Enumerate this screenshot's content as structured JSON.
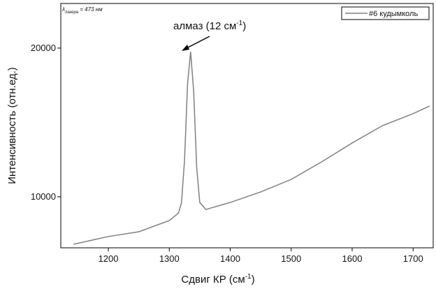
{
  "chart_data": {
    "type": "line",
    "xlabel": {
      "text": "Сдвиг КР (см",
      "sup": "-1",
      "suffix": ")"
    },
    "ylabel": "Интенсивность (отн.ед.)",
    "note": {
      "symbol": "λ",
      "sub": "лазера",
      "text": "= 473 нм"
    },
    "annotation": {
      "text": "алмаз (12 см",
      "sup": "-1",
      "suffix": ")"
    },
    "x": [
      1143,
      1200,
      1250,
      1300,
      1315,
      1320,
      1325,
      1330,
      1335,
      1340,
      1345,
      1350,
      1360,
      1400,
      1450,
      1500,
      1550,
      1600,
      1650,
      1700,
      1727
    ],
    "series": [
      {
        "name": "#6 кудымколь",
        "color": "#808080",
        "values": [
          6810,
          7330,
          7650,
          8400,
          8900,
          9600,
          12440,
          17600,
          19760,
          17100,
          11970,
          9620,
          9150,
          9620,
          10330,
          11170,
          12350,
          13620,
          14790,
          15590,
          16100
        ]
      }
    ],
    "xlim": [
      1122,
      1733
    ],
    "ylim": [
      6570,
      23000
    ],
    "xticks": [
      1200,
      1300,
      1400,
      1500,
      1600,
      1700
    ],
    "yticks": [
      10000,
      20000
    ],
    "legend": "top-right",
    "grid": false
  }
}
